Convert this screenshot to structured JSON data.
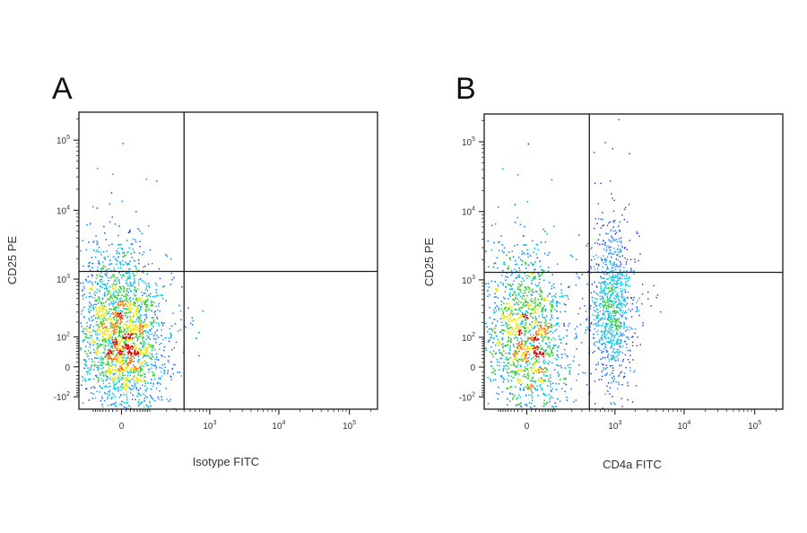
{
  "chart_data": [
    {
      "type": "scatter",
      "panel_label": "A",
      "xlabel": "Isotype FITC",
      "ylabel": "CD25 PE",
      "x_scale": "biexponential",
      "y_scale": "biexponential",
      "x_ticks": [
        {
          "value": 0,
          "base": "0",
          "exp": ""
        },
        {
          "value": 1000,
          "base": "10",
          "exp": "3"
        },
        {
          "value": 10000,
          "base": "10",
          "exp": "4"
        },
        {
          "value": 100000,
          "base": "10",
          "exp": "5"
        }
      ],
      "y_ticks": [
        {
          "value": -100,
          "base": "-10",
          "exp": "2"
        },
        {
          "value": 0,
          "base": "0",
          "exp": ""
        },
        {
          "value": 100,
          "base": "10",
          "exp": "2"
        },
        {
          "value": 1000,
          "base": "10",
          "exp": "3"
        },
        {
          "value": 10000,
          "base": "10",
          "exp": "4"
        },
        {
          "value": 100000,
          "base": "10",
          "exp": "5"
        }
      ],
      "quadrant_gate": {
        "x": 400,
        "y": 1300
      },
      "populations": [
        {
          "x_center": 0,
          "y_center": 110,
          "count": 5200
        }
      ],
      "density_colors": [
        "#1a2fd0",
        "#1e90ff",
        "#00c8e0",
        "#33cc33",
        "#e8e800",
        "#ff7700",
        "#e00000"
      ]
    },
    {
      "type": "scatter",
      "panel_label": "B",
      "xlabel": "CD4a FITC",
      "ylabel": "CD25 PE",
      "x_scale": "biexponential",
      "y_scale": "biexponential",
      "x_ticks": [
        {
          "value": 0,
          "base": "0",
          "exp": ""
        },
        {
          "value": 1000,
          "base": "10",
          "exp": "3"
        },
        {
          "value": 10000,
          "base": "10",
          "exp": "4"
        },
        {
          "value": 100000,
          "base": "10",
          "exp": "5"
        }
      ],
      "y_ticks": [
        {
          "value": -100,
          "base": "-10",
          "exp": "2"
        },
        {
          "value": 0,
          "base": "0",
          "exp": ""
        },
        {
          "value": 100,
          "base": "10",
          "exp": "2"
        },
        {
          "value": 1000,
          "base": "10",
          "exp": "3"
        },
        {
          "value": 10000,
          "base": "10",
          "exp": "4"
        },
        {
          "value": 100000,
          "base": "10",
          "exp": "5"
        }
      ],
      "quadrant_gate": {
        "x": 400,
        "y": 1300
      },
      "populations": [
        {
          "x_center": 0,
          "y_center": 110,
          "count": 4200
        },
        {
          "x_center": 900,
          "y_center": 350,
          "count": 1100
        }
      ],
      "density_colors": [
        "#1a2fd0",
        "#1e90ff",
        "#00c8e0",
        "#33cc33",
        "#e8e800",
        "#ff7700",
        "#e00000"
      ]
    }
  ]
}
